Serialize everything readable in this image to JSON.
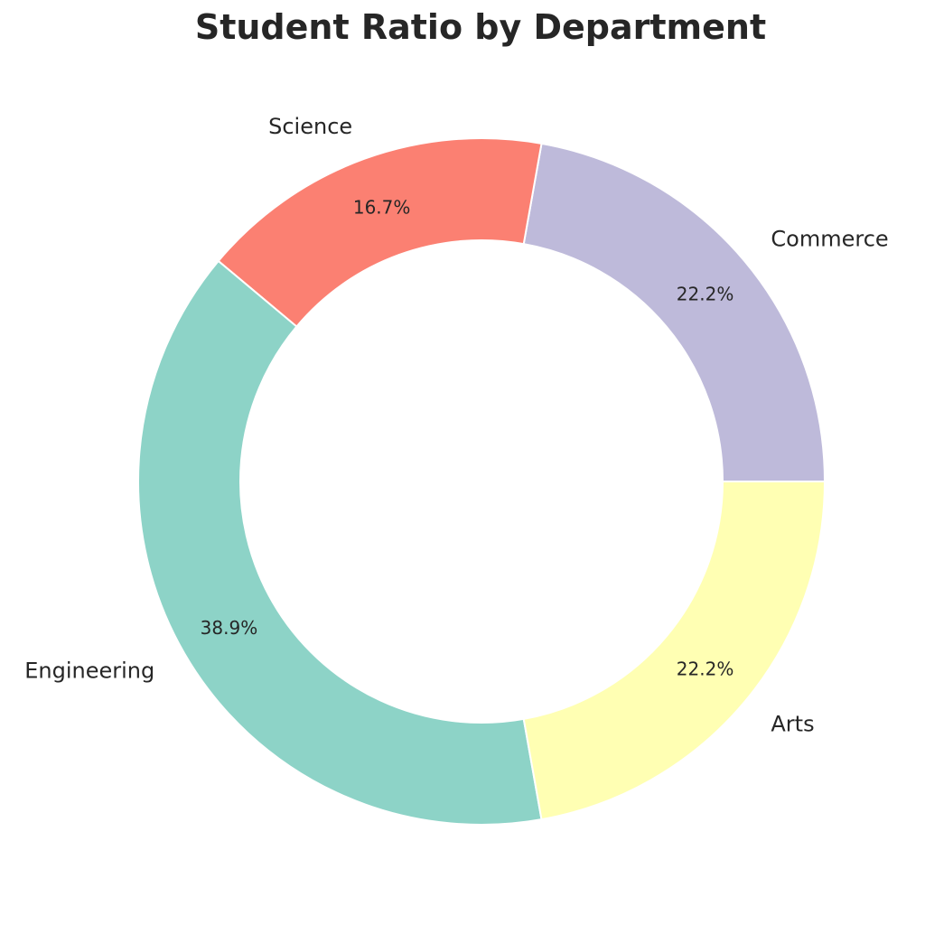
{
  "chart_data": {
    "type": "pie",
    "donut": true,
    "title": "Student Ratio by Department",
    "start_angle_deg": 0,
    "direction": "counterclockwise",
    "slices": [
      {
        "label": "Commerce",
        "value": 22.2,
        "pct_label": "22.2%",
        "color": "#bebada"
      },
      {
        "label": "Science",
        "value": 16.7,
        "pct_label": "16.7%",
        "color": "#fb8072"
      },
      {
        "label": "Engineering",
        "value": 38.9,
        "pct_label": "38.9%",
        "color": "#8dd3c7"
      },
      {
        "label": "Arts",
        "value": 22.2,
        "pct_label": "22.2%",
        "color": "#ffffb3"
      }
    ]
  }
}
